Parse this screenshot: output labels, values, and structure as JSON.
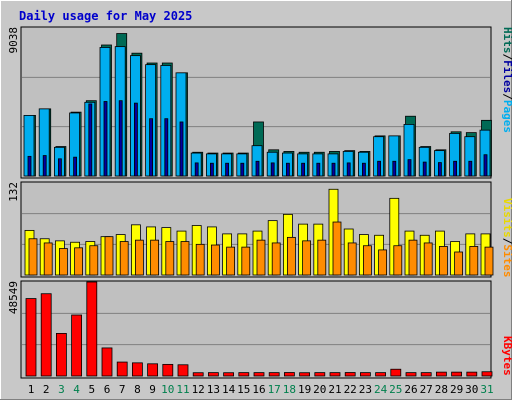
{
  "chart_data": {
    "type": "bar",
    "title": "Daily usage for May 2025",
    "colors": {
      "title": "#0000CC",
      "hits": "#006A55",
      "files": "#00AEEF",
      "pages": "#0000A0",
      "visits": "#FFFF00",
      "sites": "#FF8C00",
      "kbytes": "#FF0000",
      "weekend_label": "#00804D",
      "plot_bg": "#C0C0C0",
      "frame_bg": "#C8C8C8"
    },
    "legend": {
      "upper": [
        "Hits",
        "Files",
        "Pages"
      ],
      "middle": [
        "Visits",
        "Sites"
      ],
      "lower": [
        "KBytes"
      ],
      "separator": "/"
    },
    "axis_max": {
      "upper": "9038",
      "middle": "132",
      "lower": "48549"
    },
    "categories": [
      "1",
      "2",
      "3",
      "4",
      "5",
      "6",
      "7",
      "8",
      "9",
      "10",
      "11",
      "12",
      "13",
      "14",
      "15",
      "16",
      "17",
      "18",
      "19",
      "20",
      "21",
      "22",
      "23",
      "24",
      "25",
      "26",
      "27",
      "28",
      "29",
      "30",
      "31"
    ],
    "weekend_days": [
      "3",
      "4",
      "10",
      "11",
      "17",
      "18",
      "24",
      "25",
      "31"
    ],
    "panels": {
      "upper": {
        "ymax": 9038,
        "series": [
          {
            "name": "Hits",
            "values": [
              3700,
              4100,
              1800,
              3900,
              4600,
              8000,
              8700,
              7500,
              6900,
              6900,
              6300,
              1450,
              1400,
              1400,
              1400,
              3300,
              1600,
              1500,
              1450,
              1450,
              1500,
              1550,
              1500,
              2450,
              2450,
              3650,
              1800,
              1600,
              2700,
              2650,
              3400
            ]
          },
          {
            "name": "Files",
            "values": [
              3700,
              4100,
              1750,
              3850,
              4500,
              7850,
              7900,
              7350,
              6800,
              6750,
              6300,
              1400,
              1350,
              1350,
              1350,
              1850,
              1450,
              1400,
              1350,
              1350,
              1350,
              1500,
              1450,
              2400,
              2450,
              3150,
              1750,
              1550,
              2600,
              2400,
              2800
            ]
          },
          {
            "name": "Pages",
            "values": [
              1200,
              1250,
              1050,
              1150,
              4400,
              4550,
              4600,
              4450,
              3500,
              3500,
              3300,
              800,
              780,
              780,
              780,
              900,
              800,
              780,
              780,
              780,
              780,
              800,
              780,
              900,
              900,
              1000,
              850,
              820,
              900,
              900,
              1300
            ]
          }
        ]
      },
      "middle": {
        "ymax": 132,
        "series": [
          {
            "name": "Visits",
            "values": [
              64,
              52,
              49,
              47,
              48,
              55,
              58,
              72,
              69,
              68,
              63,
              71,
              69,
              59,
              59,
              63,
              78,
              87,
              73,
              73,
              123,
              66,
              58,
              57,
              110,
              63,
              57,
              63,
              48,
              59,
              59
            ]
          },
          {
            "name": "Sites",
            "values": [
              52,
              46,
              38,
              39,
              42,
              55,
              48,
              50,
              50,
              48,
              48,
              44,
              43,
              40,
              40,
              50,
              46,
              54,
              49,
              50,
              76,
              46,
              42,
              36,
              42,
              50,
              46,
              41,
              33,
              41,
              40
            ]
          }
        ]
      },
      "lower": {
        "ymax": 48549,
        "series": [
          {
            "name": "KBytes",
            "values": [
              40000,
              42500,
              22000,
              31500,
              48549,
              14500,
              7200,
              6800,
              6300,
              6000,
              5800,
              1700,
              1750,
              1700,
              1750,
              1750,
              1750,
              1800,
              1700,
              1750,
              1750,
              1800,
              1750,
              1750,
              3500,
              1750,
              1750,
              2000,
              2000,
              2000,
              2200
            ]
          }
        ]
      }
    }
  }
}
